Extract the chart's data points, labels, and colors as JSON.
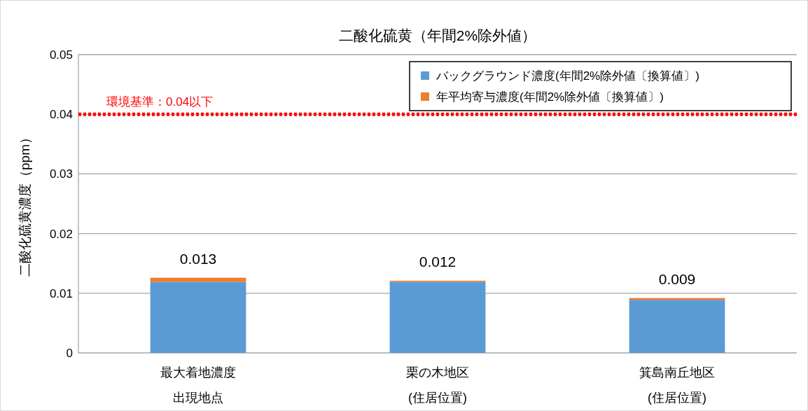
{
  "chart_data": {
    "type": "bar",
    "title": "二酸化硫黄（年間2%除外値）",
    "ylabel": "二酸化硫黄濃度（ppm）",
    "categories": [
      "最大着地濃度出現地点",
      "栗の木地区(住居位置)",
      "箕島南丘地区(住居位置)"
    ],
    "series": [
      {
        "name": "バックグラウンド濃度(年間2%除外値〔換算値〕)",
        "color": "#5b9bd5",
        "values": [
          0.0119,
          0.0119,
          0.0089
        ]
      },
      {
        "name": "年平均寄与濃度(年間2%除外値〔換算値〕)",
        "color": "#ed7d31",
        "values": [
          0.0007,
          0.0002,
          0.0003
        ]
      }
    ],
    "stacked": true,
    "totals": [
      "0.013",
      "0.012",
      "0.009"
    ],
    "ylim": [
      0,
      0.05
    ],
    "yticks": [
      0,
      0.01,
      0.02,
      0.03,
      0.04,
      0.05
    ],
    "grid": "y",
    "legend": "top right",
    "ref_lines": [
      {
        "axis": "y",
        "value": 0.04,
        "label": "環境基準：0.04以下",
        "color": "#ff0000",
        "line_style": "dotted"
      }
    ]
  }
}
